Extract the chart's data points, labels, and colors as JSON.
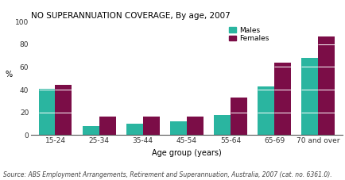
{
  "title": "NO SUPERANNUATION COVERAGE, By age, 2007",
  "xlabel": "Age group (years)",
  "ylabel": "%",
  "source": "Source: ABS Employment Arrangements, Retirement and Superannuation, Australia, 2007 (cat. no. 6361.0).",
  "categories": [
    "15-24",
    "25-34",
    "35-44",
    "45-54",
    "55-64",
    "65-69",
    "70 and over"
  ],
  "males": [
    41,
    8,
    10,
    12,
    18,
    43,
    68
  ],
  "females": [
    44,
    16,
    16,
    16,
    33,
    64,
    87
  ],
  "male_color": "#2ab5a0",
  "female_color": "#7b0d47",
  "ylim": [
    0,
    100
  ],
  "yticks": [
    0,
    20,
    40,
    60,
    80,
    100
  ],
  "bar_width": 0.38,
  "legend_labels": [
    "Males",
    "Females"
  ],
  "background_color": "#ffffff",
  "title_fontsize": 7.5,
  "axis_fontsize": 7,
  "tick_fontsize": 6.5,
  "source_fontsize": 5.5,
  "grid_lines": [
    20,
    40,
    60,
    80
  ]
}
